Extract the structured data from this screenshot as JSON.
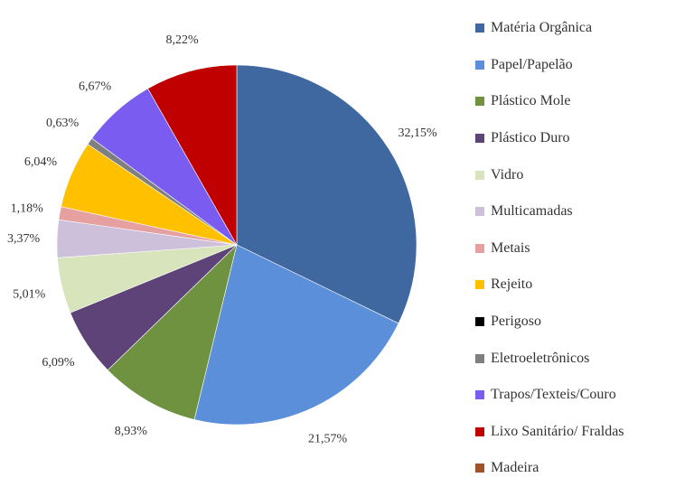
{
  "chart_data": {
    "type": "pie",
    "title": "",
    "legend_position": "right",
    "slices": [
      {
        "label": "Matéria Orgânica",
        "value": 32.15,
        "display": "32,15%",
        "color": "#3f67a0"
      },
      {
        "label": "Papel/Papelão",
        "value": 21.57,
        "display": "21,57%",
        "color": "#5b8fd9"
      },
      {
        "label": "Plástico Mole",
        "value": 8.93,
        "display": "8,93%",
        "color": "#6e9240"
      },
      {
        "label": "Plástico Duro",
        "value": 6.09,
        "display": "6,09%",
        "color": "#5d4377"
      },
      {
        "label": "Vidro",
        "value": 5.01,
        "display": "5,01%",
        "color": "#d8e4bc"
      },
      {
        "label": "Multicamadas",
        "value": 3.37,
        "display": "3,37%",
        "color": "#ccc0da"
      },
      {
        "label": "Metais",
        "value": 1.18,
        "display": "1,18%",
        "color": "#e6a0a0"
      },
      {
        "label": "Rejeito",
        "value": 6.04,
        "display": "6,04%",
        "color": "#ffc000"
      },
      {
        "label": "Perigoso",
        "value": 0.0,
        "display": "",
        "color": "#000000"
      },
      {
        "label": "Eletroeletrônicos",
        "value": 0.63,
        "display": "0,63%",
        "color": "#7f7f7f"
      },
      {
        "label": "Trapos/Texteis/Couro",
        "value": 6.67,
        "display": "6,67%",
        "color": "#7b5cf0"
      },
      {
        "label": "Lixo Sanitário/ Fraldas",
        "value": 8.22,
        "display": "8,22%",
        "color": "#c00000"
      },
      {
        "label": "Madeira",
        "value": 0.0,
        "display": "",
        "color": "#a0522d"
      }
    ]
  }
}
